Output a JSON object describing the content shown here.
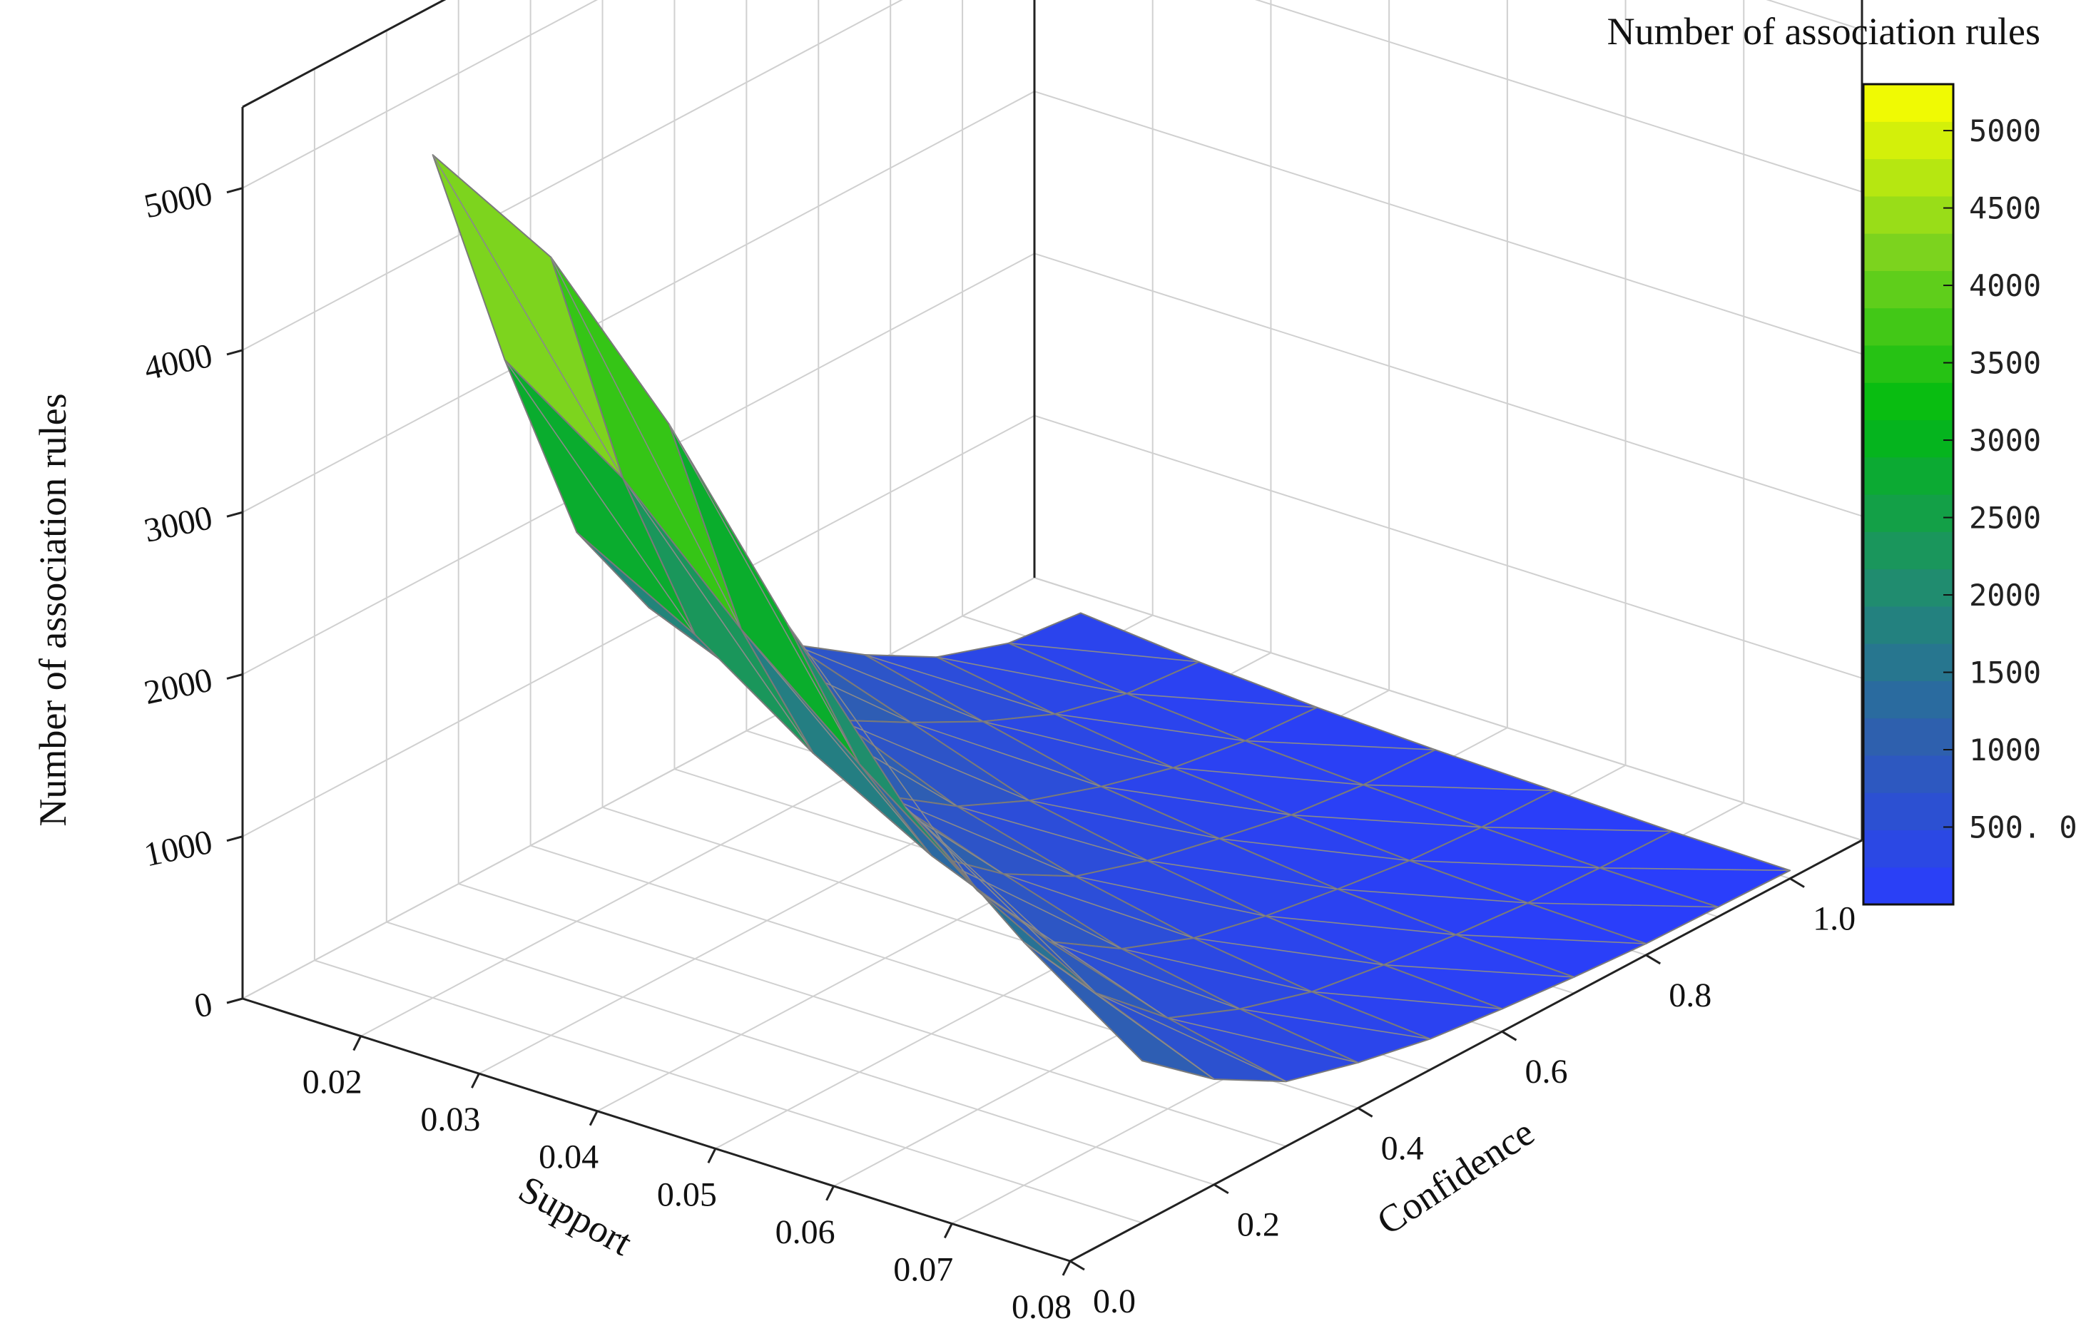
{
  "chart_data": {
    "type": "surface3d",
    "zlabel": "Number of association rules",
    "xlabel": "Support",
    "ylabel": "Confidence",
    "colorbar_title": "Number of association rules",
    "support_ticks": [
      "0.02",
      "0.03",
      "0.04",
      "0.05",
      "0.06",
      "0.07",
      "0.08"
    ],
    "support_range": [
      0.01,
      0.08
    ],
    "confidence_ticks": [
      "0.0",
      "0.2",
      "0.4",
      "0.6",
      "0.8",
      "1.0"
    ],
    "confidence_range": [
      0.0,
      1.1
    ],
    "z_ticks": [
      "0",
      "1000",
      "2000",
      "3000",
      "4000",
      "5000"
    ],
    "z_range": [
      0,
      5500
    ],
    "colorbar_ticks": [
      "500. 0",
      "1000",
      "1500",
      "2000",
      "2500",
      "3000",
      "3500",
      "4000",
      "4500",
      "5000"
    ],
    "colorbar_range": [
      0,
      5300
    ],
    "colormap": [
      "#2a3cff",
      "#2e5fb0",
      "#1f8f6a",
      "#00bb10",
      "#7fd41e",
      "#ffff00"
    ],
    "grid": true,
    "support": [
      0.02,
      0.03,
      0.04,
      0.05,
      0.06,
      0.07,
      0.08
    ],
    "confidence": [
      0.1,
      0.2,
      0.3,
      0.4,
      0.5,
      0.6,
      0.7,
      0.8,
      0.9,
      1.0
    ],
    "surface": [
      [
        5200,
        3700,
        2400,
        1700,
        1300,
        1000,
        700,
        450,
        300,
        250
      ],
      [
        4800,
        3200,
        2000,
        1400,
        1000,
        750,
        520,
        330,
        220,
        180
      ],
      [
        4000,
        2500,
        1500,
        1000,
        700,
        500,
        350,
        230,
        160,
        130
      ],
      [
        3000,
        1900,
        1100,
        750,
        500,
        360,
        260,
        170,
        120,
        100
      ],
      [
        2100,
        1350,
        800,
        520,
        350,
        250,
        180,
        120,
        90,
        80
      ],
      [
        1500,
        950,
        560,
        380,
        250,
        180,
        130,
        90,
        70,
        60
      ],
      [
        1000,
        650,
        400,
        280,
        190,
        140,
        100,
        70,
        60,
        50
      ]
    ]
  }
}
